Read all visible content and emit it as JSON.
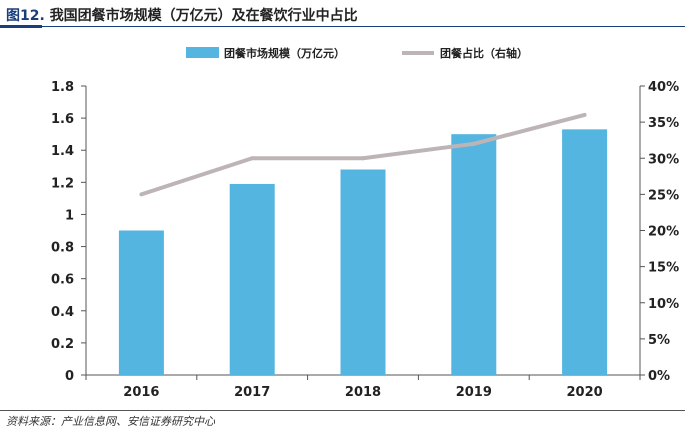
{
  "title": {
    "fig_label": "图12.",
    "text": "我国团餐市场规模（万亿元）及在餐饮行业中占比"
  },
  "source": "资料来源：产业信息网、安信证券研究中心",
  "colors": {
    "bar": "#54b5e0",
    "line": "#bdb5b5",
    "title_accent": "#1a3d7c"
  },
  "chart_data": {
    "type": "bar",
    "categories": [
      "2016",
      "2017",
      "2018",
      "2019",
      "2020"
    ],
    "series": [
      {
        "name": "团餐市场规模（万亿元）",
        "type": "bar",
        "axis": "left",
        "values": [
          0.9,
          1.19,
          1.28,
          1.5,
          1.53
        ]
      },
      {
        "name": "团餐占比（右轴）",
        "type": "line",
        "axis": "right",
        "values": [
          0.25,
          0.3,
          0.3,
          0.32,
          0.36
        ]
      }
    ],
    "ylim": [
      0,
      1.8
    ],
    "yticks": [
      "0",
      "0.2",
      "0.4",
      "0.6",
      "0.8",
      "1",
      "1.2",
      "1.4",
      "1.6",
      "1.8"
    ],
    "y2lim": [
      0,
      0.4
    ],
    "y2ticks": [
      "0%",
      "5%",
      "10%",
      "15%",
      "20%",
      "25%",
      "30%",
      "35%",
      "40%"
    ],
    "legend_position": "top-center",
    "grid": false
  }
}
